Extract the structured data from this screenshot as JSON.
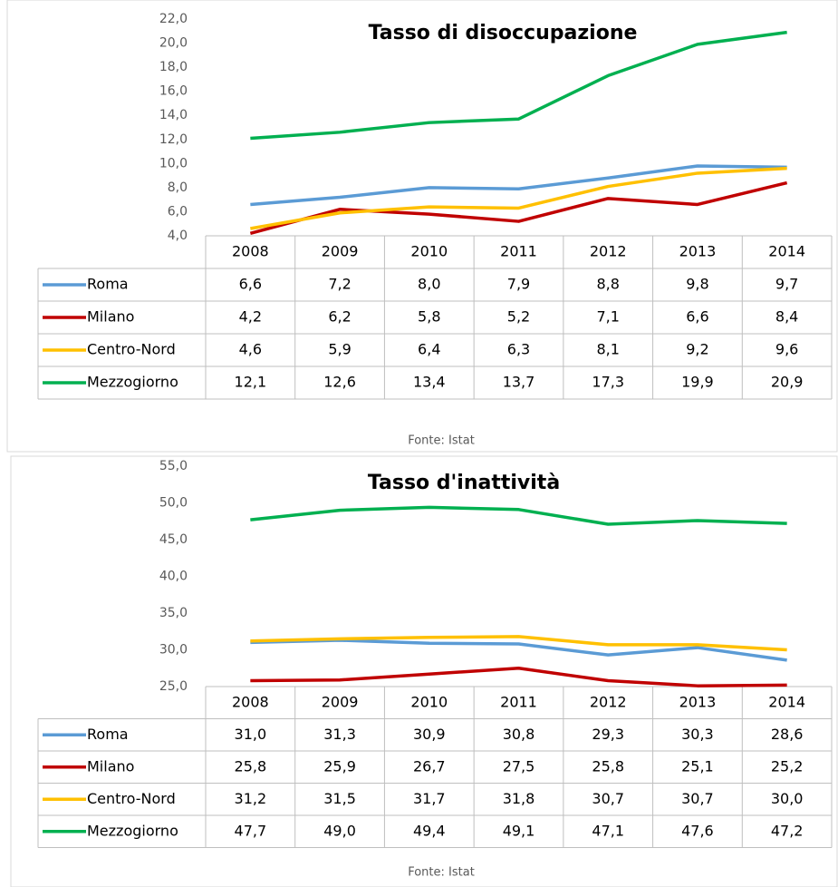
{
  "chart_data": [
    {
      "type": "line",
      "title": "Tasso di disoccupazione",
      "source": "Fonte: Istat",
      "categories": [
        "2008",
        "2009",
        "2010",
        "2011",
        "2012",
        "2013",
        "2014"
      ],
      "ylim": [
        4,
        22
      ],
      "yticks": [
        {
          "value": 4,
          "label": "4,0"
        },
        {
          "value": 6,
          "label": "6,0"
        },
        {
          "value": 8,
          "label": "8,0"
        },
        {
          "value": 10,
          "label": "10,0"
        },
        {
          "value": 12,
          "label": "12,0"
        },
        {
          "value": 14,
          "label": "14,0"
        },
        {
          "value": 16,
          "label": "16,0"
        },
        {
          "value": 18,
          "label": "18,0"
        },
        {
          "value": 20,
          "label": "20,0"
        },
        {
          "value": 22,
          "label": "22,0"
        }
      ],
      "series": [
        {
          "name": "Roma",
          "color": "#5b9bd5",
          "values": [
            6.6,
            7.2,
            8.0,
            7.9,
            8.8,
            9.8,
            9.7
          ],
          "value_labels": [
            "6,6",
            "7,2",
            "8,0",
            "7,9",
            "8,8",
            "9,8",
            "9,7"
          ]
        },
        {
          "name": "Milano",
          "color": "#c00000",
          "values": [
            4.2,
            6.2,
            5.8,
            5.2,
            7.1,
            6.6,
            8.4
          ],
          "value_labels": [
            "4,2",
            "6,2",
            "5,8",
            "5,2",
            "7,1",
            "6,6",
            "8,4"
          ]
        },
        {
          "name": "Centro-Nord",
          "color": "#ffc000",
          "values": [
            4.6,
            5.9,
            6.4,
            6.3,
            8.1,
            9.2,
            9.6
          ],
          "value_labels": [
            "4,6",
            "5,9",
            "6,4",
            "6,3",
            "8,1",
            "9,2",
            "9,6"
          ]
        },
        {
          "name": "Mezzogiorno",
          "color": "#00b050",
          "values": [
            12.1,
            12.6,
            13.4,
            13.7,
            17.3,
            19.9,
            20.9
          ],
          "value_labels": [
            "12,1",
            "12,6",
            "13,4",
            "13,7",
            "17,3",
            "19,9",
            "20,9"
          ]
        }
      ]
    },
    {
      "type": "line",
      "title": "Tasso d'inattività",
      "source": "Fonte: Istat",
      "categories": [
        "2008",
        "2009",
        "2010",
        "2011",
        "2012",
        "2013",
        "2014"
      ],
      "ylim": [
        25,
        55
      ],
      "yticks": [
        {
          "value": 25,
          "label": "25,0"
        },
        {
          "value": 30,
          "label": "30,0"
        },
        {
          "value": 35,
          "label": "35,0"
        },
        {
          "value": 40,
          "label": "40,0"
        },
        {
          "value": 45,
          "label": "45,0"
        },
        {
          "value": 50,
          "label": "50,0"
        },
        {
          "value": 55,
          "label": "55,0"
        }
      ],
      "series": [
        {
          "name": "Roma",
          "color": "#5b9bd5",
          "values": [
            31.0,
            31.3,
            30.9,
            30.8,
            29.3,
            30.3,
            28.6
          ],
          "value_labels": [
            "31,0",
            "31,3",
            "30,9",
            "30,8",
            "29,3",
            "30,3",
            "28,6"
          ]
        },
        {
          "name": "Milano",
          "color": "#c00000",
          "values": [
            25.8,
            25.9,
            26.7,
            27.5,
            25.8,
            25.1,
            25.2
          ],
          "value_labels": [
            "25,8",
            "25,9",
            "26,7",
            "27,5",
            "25,8",
            "25,1",
            "25,2"
          ]
        },
        {
          "name": "Centro-Nord",
          "color": "#ffc000",
          "values": [
            31.2,
            31.5,
            31.7,
            31.8,
            30.7,
            30.7,
            30.0
          ],
          "value_labels": [
            "31,2",
            "31,5",
            "31,7",
            "31,8",
            "30,7",
            "30,7",
            "30,0"
          ]
        },
        {
          "name": "Mezzogiorno",
          "color": "#00b050",
          "values": [
            47.7,
            49.0,
            49.4,
            49.1,
            47.1,
            47.6,
            47.2
          ],
          "value_labels": [
            "47,7",
            "49,0",
            "49,4",
            "49,1",
            "47,1",
            "47,6",
            "47,2"
          ]
        }
      ]
    }
  ]
}
